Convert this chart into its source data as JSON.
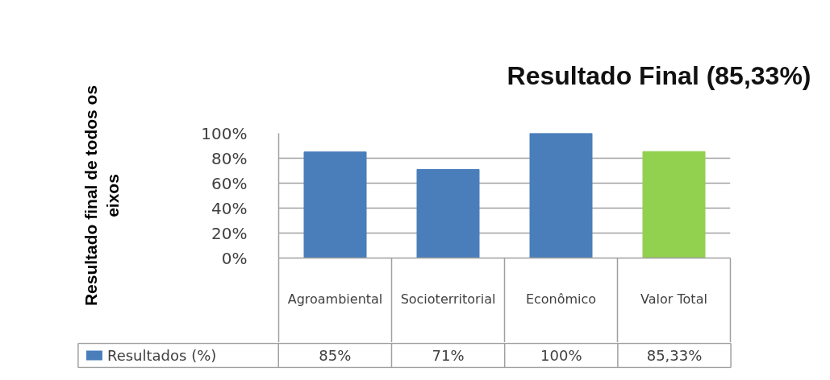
{
  "chart_data": {
    "type": "bar",
    "title": "Resultado Final (85,33%)",
    "ylabel": "Resultado final de todos os eixos",
    "categories": [
      "Agroambiental",
      "Socioterritorial",
      "Econômico",
      "Valor Total"
    ],
    "series": [
      {
        "name": "Resultados (%)",
        "color": "#4a7ebb",
        "colors": [
          "#4a7ebb",
          "#4a7ebb",
          "#4a7ebb",
          "#92d050"
        ],
        "values": [
          85,
          71,
          100,
          85.33
        ],
        "value_labels": [
          "85%",
          "71%",
          "100%",
          "85,33%"
        ]
      }
    ],
    "ylim": [
      0,
      100
    ],
    "yticks": [
      {
        "value": 0,
        "label": "0%"
      },
      {
        "value": 20,
        "label": "20%"
      },
      {
        "value": 40,
        "label": "40%"
      },
      {
        "value": 60,
        "label": "60%"
      },
      {
        "value": 80,
        "label": "80%"
      },
      {
        "value": 100,
        "label": "100%"
      }
    ],
    "grid": "y",
    "legend": "bottom left"
  }
}
